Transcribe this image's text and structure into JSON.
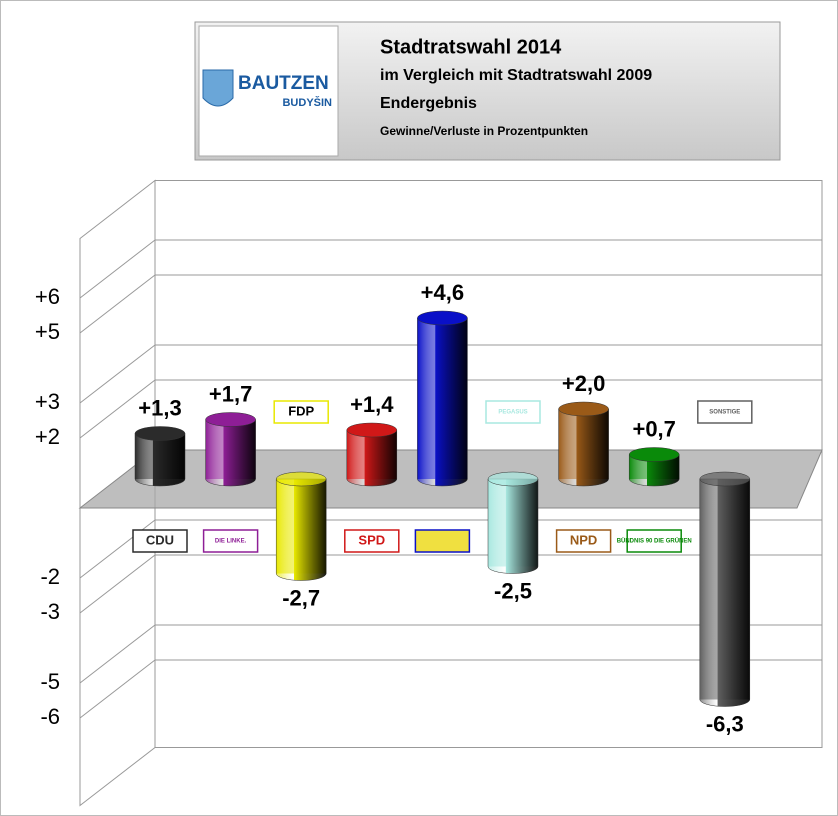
{
  "chart_data": {
    "type": "bar3d",
    "title": "Stadtratswahl 2014",
    "subtitle": "im Vergleich mit Stadtratswahl 2009",
    "status": "Endergebnis",
    "note": "Gewinne/Verluste in Prozentpunkten",
    "logo": {
      "name": "BAUTZEN",
      "subname": "BUDYŠIN"
    },
    "categories": [
      "CDU",
      "DIE LINKE.",
      "FDP",
      "SPD",
      null,
      "PEGASUS",
      "NPD",
      "BÜNDNIS 90 DIE GRÜNEN",
      "SONSTIGE"
    ],
    "values": [
      1.3,
      1.7,
      -2.7,
      1.4,
      4.6,
      -2.5,
      2.0,
      0.7,
      -6.3
    ],
    "value_labels": [
      "+1,3",
      "+1,7",
      "-2,7",
      "+1,4",
      "+4,6",
      "-2,5",
      "+2,0",
      "+0,7",
      "-6,3"
    ],
    "colors": [
      "#2b2b2b",
      "#8e1e96",
      "#e8e800",
      "#d01818",
      "#0a10c8",
      "#a8e8e0",
      "#9a5a18",
      "#0a8a0a",
      "#606060"
    ],
    "ylim": [
      -8.5,
      7.7
    ],
    "yticks": [
      {
        "value": 6,
        "label": "+6"
      },
      {
        "value": 5,
        "label": "+5"
      },
      {
        "value": 3,
        "label": "+3"
      },
      {
        "value": 2,
        "label": "+2"
      },
      -2,
      -3,
      -5,
      -6
    ],
    "grid": true
  }
}
